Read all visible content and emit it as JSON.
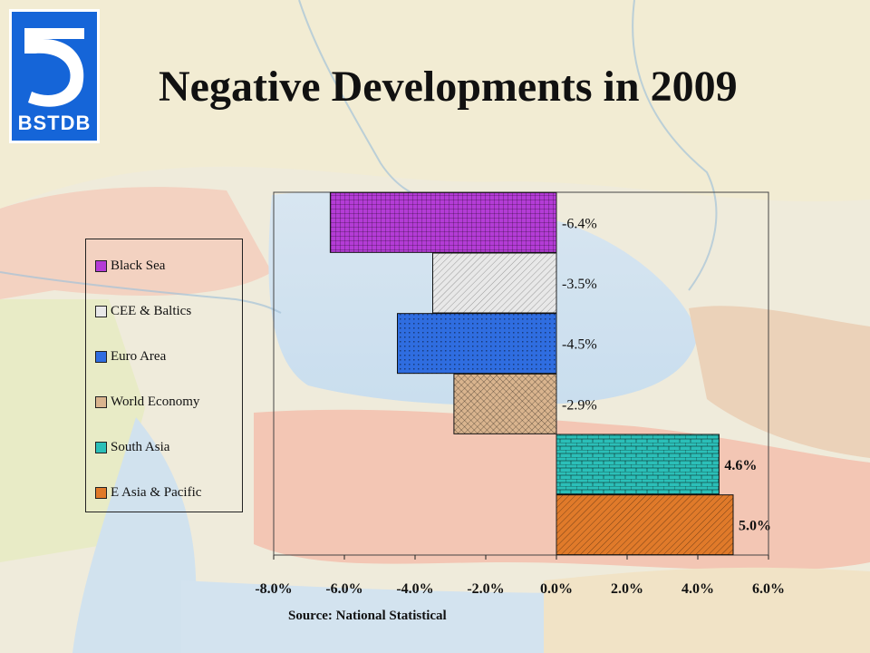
{
  "title": "Negative Developments in 2009",
  "logo": {
    "text": "BSTDB",
    "color": "#1565d8"
  },
  "source": "Source: National Statistical",
  "chart_data": {
    "type": "bar",
    "orientation": "horizontal",
    "categories": [
      "Black Sea",
      "CEE & Baltics",
      "Euro Area",
      "World Economy",
      "South Asia",
      "E Asia & Pacific"
    ],
    "values": [
      -6.4,
      -3.5,
      -4.5,
      -2.9,
      4.6,
      5.0
    ],
    "value_labels": [
      "-6.4%",
      "-3.5%",
      "-4.5%",
      "-2.9%",
      "4.6%",
      "5.0%"
    ],
    "colors": [
      "#b43cd6",
      "#e8e8e8",
      "#2f6de0",
      "#d9b48e",
      "#2bbfb8",
      "#e07a2a"
    ],
    "xlim": [
      -8,
      6
    ],
    "xticks": [
      "-8.0%",
      "-6.0%",
      "-4.0%",
      "-2.0%",
      "0.0%",
      "2.0%",
      "4.0%",
      "6.0%"
    ],
    "grid": false,
    "legend_position": "left"
  }
}
